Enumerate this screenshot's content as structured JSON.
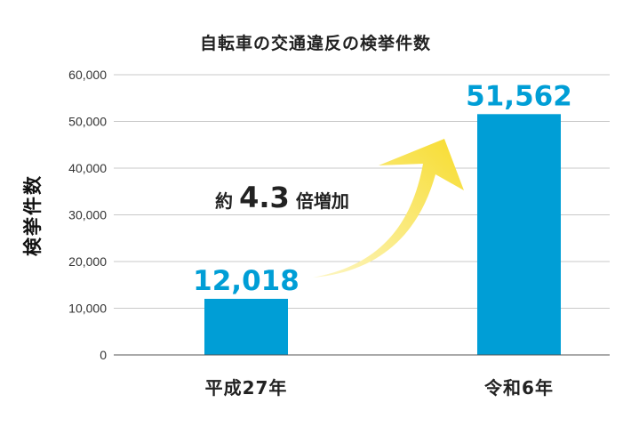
{
  "chart_data": {
    "type": "bar",
    "title": "自転車の交通違反の検挙件数",
    "ylabel": "検挙件数",
    "xlabel": "",
    "categories": [
      "平成27年",
      "令和6年"
    ],
    "values": [
      12018,
      51562
    ],
    "value_labels": [
      "12,018",
      "51,562"
    ],
    "ylim": [
      0,
      60000
    ],
    "yticks": [
      0,
      10000,
      20000,
      30000,
      40000,
      50000,
      60000
    ],
    "ytick_labels": [
      "0",
      "10,000",
      "20,000",
      "30,000",
      "40,000",
      "50,000",
      "60,000"
    ],
    "grid": true,
    "annotation": {
      "prefix": "約",
      "value": "4.3",
      "suffix": "倍増加"
    },
    "colors": {
      "bar": "#009ed6",
      "label": "#009ed6",
      "arrow": "#f7e04a"
    }
  }
}
